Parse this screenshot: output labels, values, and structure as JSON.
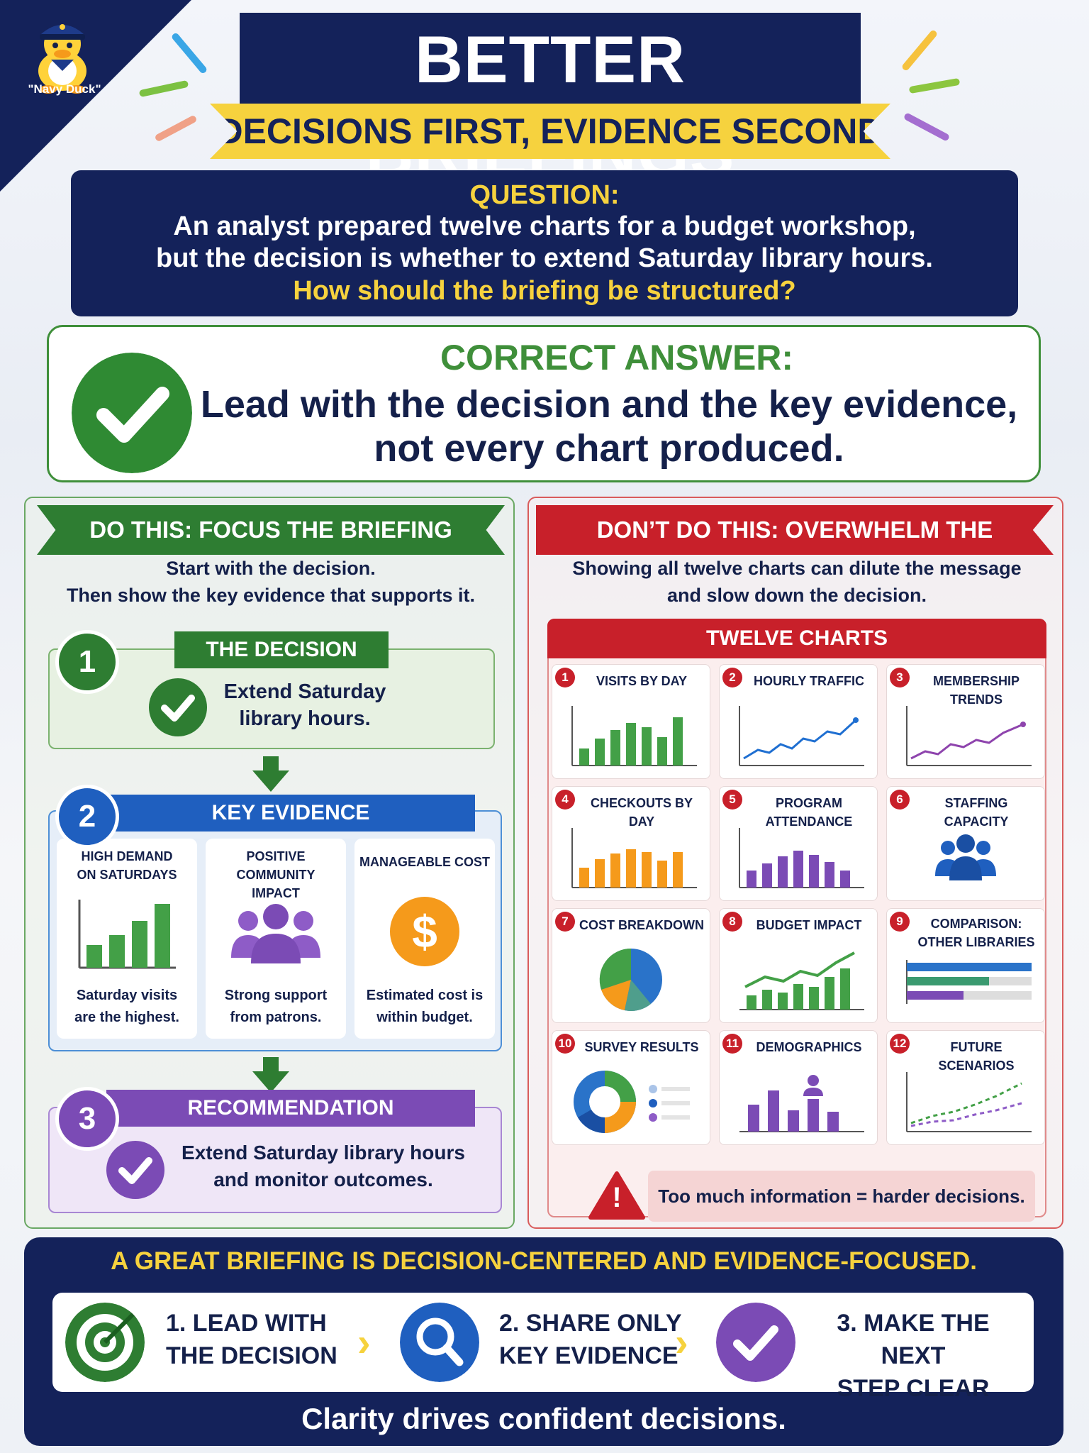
{
  "mascot_label": "\"Navy Duck\"",
  "header": {
    "title": "BETTER BRIEFINGS",
    "subtitle": "DECISIONS FIRST, EVIDENCE SECOND"
  },
  "question": {
    "label": "QUESTION:",
    "line1": "An analyst prepared twelve charts for a budget workshop,",
    "line2": "but the decision is whether to extend Saturday library hours.",
    "ask": "How should the briefing be structured?"
  },
  "answer": {
    "label": "CORRECT ANSWER:",
    "line1": "Lead with the decision and the key evidence,",
    "line2": "not every chart produced."
  },
  "do_panel": {
    "banner": "DO THIS: FOCUS THE BRIEFING",
    "intro1": "Start with the decision.",
    "intro2": "Then show the key evidence that supports it.",
    "step1": {
      "num": "1",
      "tag": "THE DECISION",
      "text1": "Extend Saturday",
      "text2": "library hours."
    },
    "step2": {
      "num": "2",
      "tag": "KEY EVIDENCE",
      "cards": [
        {
          "title1": "HIGH DEMAND",
          "title2": "ON SATURDAYS",
          "text1": "Saturday visits",
          "text2": "are the highest."
        },
        {
          "title1": "POSITIVE COMMUNITY",
          "title2": "IMPACT",
          "text1": "Strong support",
          "text2": "from patrons."
        },
        {
          "title1": "MANAGEABLE COST",
          "title2": "",
          "text1": "Estimated cost is",
          "text2": "within budget."
        }
      ],
      "dollar_symbol": "$"
    },
    "step3": {
      "num": "3",
      "tag": "RECOMMENDATION",
      "text1": "Extend Saturday library hours",
      "text2": "and monitor outcomes."
    }
  },
  "dont_panel": {
    "banner": "DON’T DO THIS: OVERWHELM THE AUDIENCE",
    "intro1": "Showing all twelve charts can dilute the message",
    "intro2": "and slow down the decision.",
    "twelve_title": "TWELVE CHARTS",
    "tiles": [
      {
        "num": "1",
        "title": "VISITS BY DAY",
        "icon": "bar-chart-green"
      },
      {
        "num": "2",
        "title": "HOURLY TRAFFIC",
        "icon": "line-chart-blue"
      },
      {
        "num": "3",
        "title": "MEMBERSHIP TRENDS",
        "icon": "line-chart-purple"
      },
      {
        "num": "4",
        "title": "CHECKOUTS BY DAY",
        "icon": "bar-chart-orange"
      },
      {
        "num": "5",
        "title": "PROGRAM ATTENDANCE",
        "icon": "bar-chart-purple"
      },
      {
        "num": "6",
        "title": "STAFFING CAPACITY",
        "icon": "people-icon"
      },
      {
        "num": "7",
        "title": "COST BREAKDOWN",
        "icon": "pie-chart"
      },
      {
        "num": "8",
        "title": "BUDGET IMPACT",
        "icon": "bar-line-chart"
      },
      {
        "num": "9",
        "title": "COMPARISON: OTHER LIBRARIES",
        "icon": "horizontal-bar-chart"
      },
      {
        "num": "10",
        "title": "SURVEY RESULTS",
        "icon": "donut-chart"
      },
      {
        "num": "11",
        "title": "DEMOGRAPHICS",
        "icon": "bar-chart-person"
      },
      {
        "num": "12",
        "title": "FUTURE SCENARIOS",
        "icon": "dotted-line-chart"
      }
    ],
    "warning_symbol": "!",
    "warning": "Too much information = harder decisions."
  },
  "footer": {
    "headline": "A GREAT BRIEFING IS DECISION-CENTERED AND EVIDENCE-FOCUSED.",
    "steps": [
      {
        "line1": "1. LEAD WITH",
        "line2": "THE DECISION",
        "icon": "target-icon"
      },
      {
        "line1": "2. SHARE ONLY",
        "line2": "KEY EVIDENCE",
        "icon": "magnifier-icon"
      },
      {
        "line1": "3. MAKE THE NEXT",
        "line2": "STEP CLEAR",
        "icon": "check-icon"
      }
    ],
    "chevron": "›",
    "tagline": "Clarity drives confident decisions."
  },
  "colors": {
    "navy": "#14225a",
    "yellow": "#f6d23e",
    "green": "#2e7d32",
    "blue": "#1f5fbf",
    "purple": "#7b4bb5",
    "red": "#c8202a",
    "orange": "#f59a1b"
  }
}
